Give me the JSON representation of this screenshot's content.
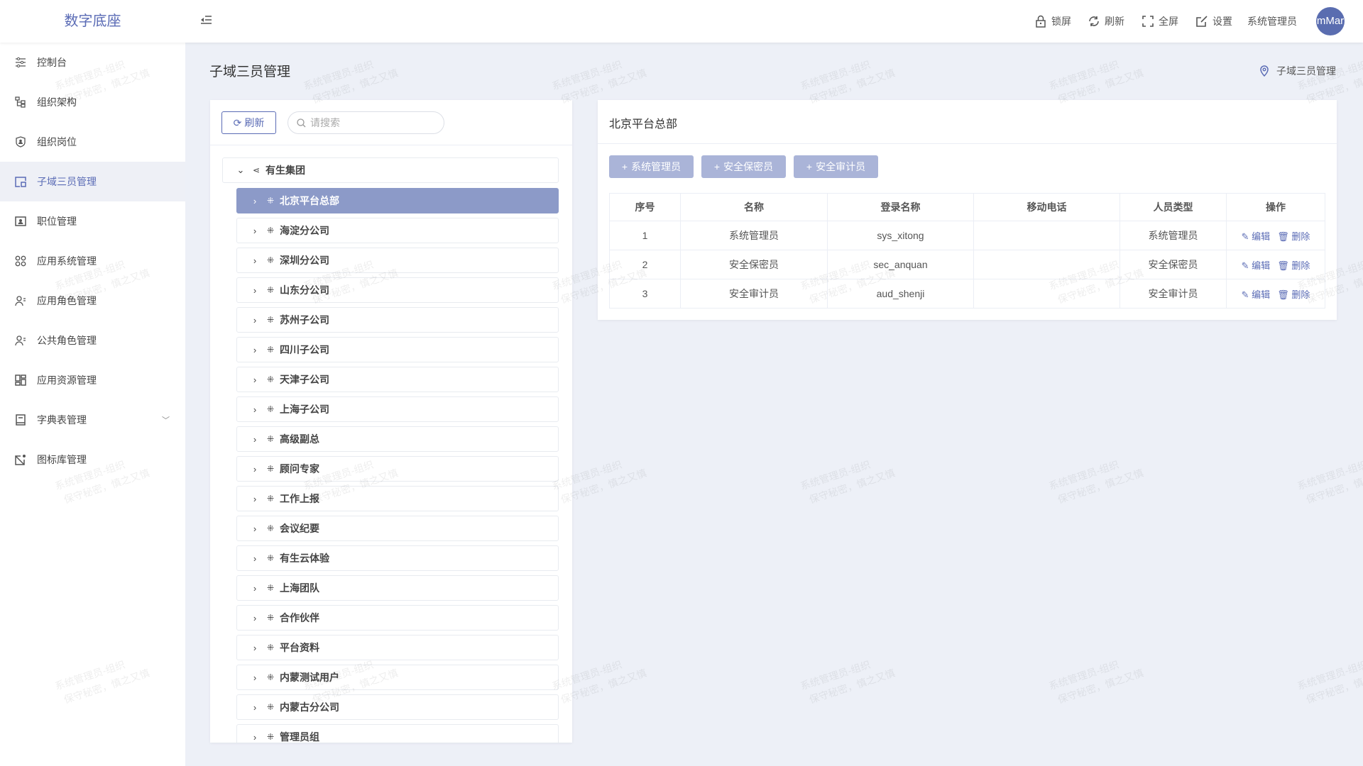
{
  "header": {
    "logo": "数字底座",
    "actions": [
      {
        "icon": "lock-icon",
        "label": "锁屏"
      },
      {
        "icon": "refresh-icon",
        "label": "刷新"
      },
      {
        "icon": "fullscreen-icon",
        "label": "全屏"
      },
      {
        "icon": "edit-settings-icon",
        "label": "设置"
      }
    ],
    "user": "系统管理员",
    "avatar": "mMar"
  },
  "sidebar": {
    "items": [
      {
        "icon": "sliders-icon",
        "label": "控制台"
      },
      {
        "icon": "org-tree-icon",
        "label": "组织架构"
      },
      {
        "icon": "shield-user-icon",
        "label": "组织岗位"
      },
      {
        "icon": "window-icon",
        "label": "子域三员管理",
        "active": true
      },
      {
        "icon": "id-card-icon",
        "label": "职位管理"
      },
      {
        "icon": "apps-icon",
        "label": "应用系统管理"
      },
      {
        "icon": "user-list-icon",
        "label": "应用角色管理"
      },
      {
        "icon": "user-list-icon",
        "label": "公共角色管理"
      },
      {
        "icon": "grid-icon",
        "label": "应用资源管理"
      },
      {
        "icon": "book-icon",
        "label": "字典表管理",
        "expandable": true
      },
      {
        "icon": "image-edit-icon",
        "label": "图标库管理"
      }
    ]
  },
  "page": {
    "title": "子域三员管理",
    "breadcrumb": "子域三员管理"
  },
  "tree": {
    "refresh_label": "刷新",
    "search_placeholder": "请搜索",
    "root": "有生集团",
    "selected": "北京平台总部",
    "children": [
      "北京平台总部",
      "海淀分公司",
      "深圳分公司",
      "山东分公司",
      "苏州子公司",
      "四川子公司",
      "天津子公司",
      "上海子公司",
      "高级副总",
      "顾问专家",
      "工作上报",
      "会议纪要",
      "有生云体验",
      "上海团队",
      "合作伙伴",
      "平台资料",
      "内蒙测试用户",
      "内蒙古分公司",
      "管理员组"
    ]
  },
  "detail": {
    "title": "北京平台总部",
    "add_buttons": [
      "系统管理员",
      "安全保密员",
      "安全审计员"
    ],
    "columns": [
      "序号",
      "名称",
      "登录名称",
      "移动电话",
      "人员类型",
      "操作"
    ],
    "rows": [
      {
        "index": "1",
        "name": "系统管理员",
        "login": "sys_xitong",
        "phone": "",
        "type": "系统管理员"
      },
      {
        "index": "2",
        "name": "安全保密员",
        "login": "sec_anquan",
        "phone": "",
        "type": "安全保密员"
      },
      {
        "index": "3",
        "name": "安全审计员",
        "login": "aud_shenji",
        "phone": "",
        "type": "安全审计员"
      }
    ],
    "edit_label": "编辑",
    "delete_label": "删除"
  },
  "watermark": {
    "line1": "系统管理员-组织",
    "line2": "保守秘密，慎之又慎"
  },
  "colors": {
    "accent": "#5a6bb5",
    "selected": "#8c9ac8",
    "button": "#aab4d8",
    "background": "#edf0f7"
  }
}
